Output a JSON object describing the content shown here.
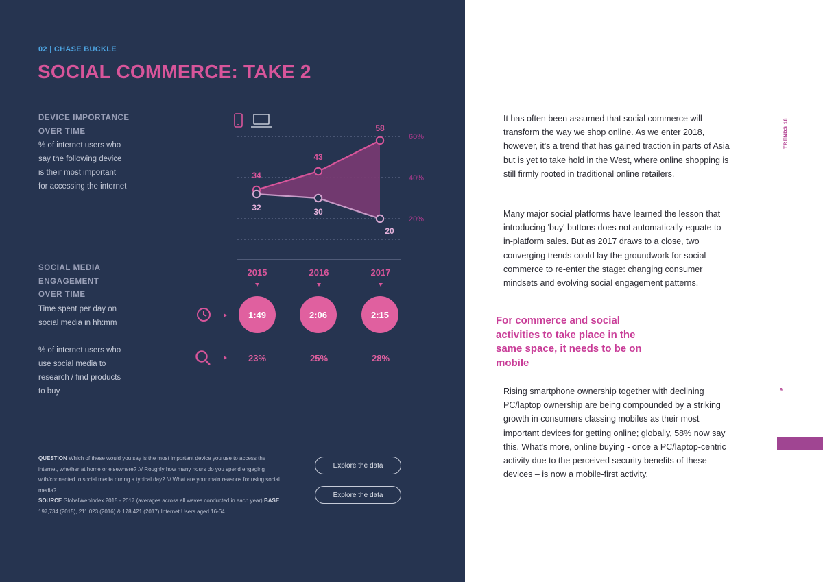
{
  "header": {
    "kicker": "02 | CHASE BUCKLE",
    "title": "SOCIAL COMMERCE: TAKE 2"
  },
  "device_block": {
    "heading_line1": "DEVICE IMPORTANCE",
    "heading_line2": "OVER TIME",
    "description_lines": [
      "% of internet users who",
      "say the following device",
      "is their most important",
      "for accessing the internet"
    ]
  },
  "engagement_block": {
    "heading_line1": "SOCIAL MEDIA",
    "heading_line2": "ENGAGEMENT",
    "heading_line3": "OVER TIME",
    "time_desc_lines": [
      "Time spent per day on",
      "social media in hh:mm"
    ],
    "research_desc_lines": [
      "% of internet users who",
      "use social media to",
      "research / find products",
      "to buy"
    ]
  },
  "chart_data": {
    "type": "line",
    "title": "Device importance over time",
    "categories": [
      "2015",
      "2016",
      "2017"
    ],
    "series": [
      {
        "name": "Mobile",
        "icon": "smartphone-icon",
        "values": [
          34,
          43,
          58
        ],
        "labels": [
          "34",
          "43",
          "58"
        ]
      },
      {
        "name": "PC/Laptop",
        "icon": "laptop-icon",
        "values": [
          32,
          30,
          20
        ],
        "labels": [
          "32",
          "30",
          "20"
        ]
      }
    ],
    "y_ticks": [
      "60%",
      "40%",
      "20%"
    ],
    "ylim": [
      0,
      70
    ],
    "color": "#d7559a",
    "fill_color": "#7a3a72"
  },
  "timeline": {
    "years": [
      "2015",
      "2016",
      "2017"
    ],
    "time_spent": [
      "1:49",
      "2:06",
      "2:15"
    ],
    "research_pct": [
      "23%",
      "25%",
      "28%"
    ]
  },
  "footnote": {
    "question_label": "QUESTION",
    "question_text": " Which of these would you say is the most important device you use to access the internet, whether at home or elsewhere? /// Roughly how many hours do you spend engaging with/connected to social media during a typical day? /// What are your main reasons for using social media?",
    "source_label": "SOURCE",
    "source_text": " GlobalWebIndex 2015 - 2017 (averages across all waves conducted in each year)",
    "base_label": "BASE",
    "base_text": " 197,734 (2015), 211,023 (2016) & 178,421 (2017) Internet Users aged 16-64"
  },
  "buttons": {
    "explore_1": "Explore the data",
    "explore_2": "Explore the data"
  },
  "right_page": {
    "para1": "It has often been assumed that social commerce will transform the way we shop online. As we enter 2018, however, it's a trend that has gained traction in parts of Asia but is yet to take hold in the West, where online shopping is still firmly rooted in traditional online retailers.",
    "para2": "Many major social platforms have learned the lesson that introducing 'buy' buttons does not automatically equate to in-platform sales. But as 2017 draws to a close, two converging trends could lay the groundwork for social commerce to re-enter the stage: changing consumer mindsets and evolving social engagement patterns.",
    "pullquote": "For commerce and social activities to take place in the same space, it needs to be on mobile",
    "para3": "Rising smartphone ownership together with declining PC/laptop ownership are being compounded by a striking growth in consumers classing mobiles as their most important devices for getting online; globally, 58% now say this. What's more, online buying - once a PC/laptop-centric activity due to the perceived security benefits of these devices – is now a mobile-first activity.",
    "side_label": "TRENDS 18",
    "page_number": "9"
  },
  "colors": {
    "panel_bg": "#263450",
    "accent_pink": "#d7559a",
    "kicker_blue": "#4da3e0",
    "magenta": "#c93d98"
  }
}
